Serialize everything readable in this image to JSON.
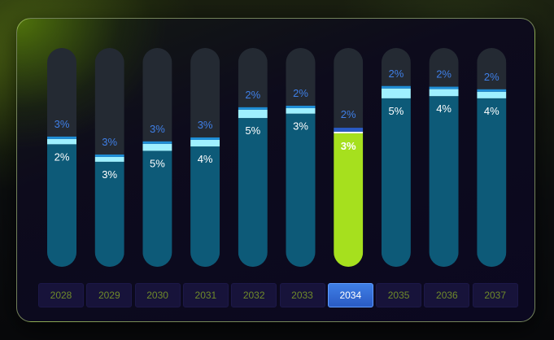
{
  "chart_data": {
    "type": "bar",
    "categories": [
      "2028",
      "2029",
      "2030",
      "2031",
      "2032",
      "2033",
      "2034",
      "2035",
      "2036",
      "2037"
    ],
    "selected_category": "2034",
    "series": [
      {
        "values": [
          2,
          3,
          5,
          4,
          5,
          3,
          3,
          5,
          4,
          4
        ],
        "color": "#0d5a78",
        "highlight_color": "#a6e01e"
      },
      {
        "values": [
          3,
          3,
          3,
          3,
          2,
          2,
          2,
          2,
          2,
          2
        ],
        "color": "#9ff0ff"
      }
    ],
    "bar_fill_fraction": [
      0.56,
      0.48,
      0.53,
      0.55,
      0.68,
      0.7,
      0.61,
      0.77,
      0.78,
      0.77
    ],
    "top_segment_fraction": [
      0.024,
      0.022,
      0.032,
      0.03,
      0.038,
      0.025,
      0.018,
      0.045,
      0.032,
      0.03
    ],
    "colors": {
      "track": "#242a33",
      "label_upper": "#3f7fe6",
      "label_lower": "#ffffff",
      "accent": "#2a5bc4"
    }
  }
}
